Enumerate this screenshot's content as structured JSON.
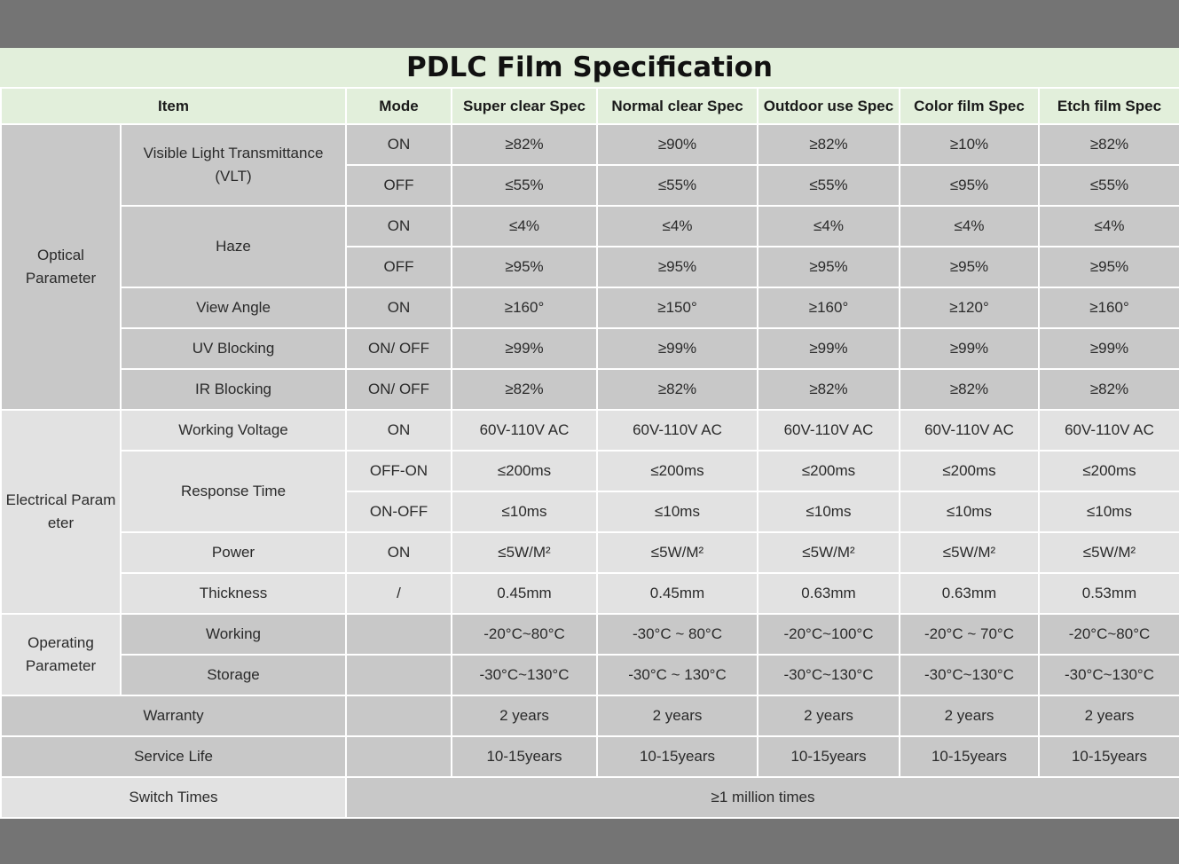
{
  "title": "PDLC Film Specification",
  "header": {
    "item": "Item",
    "mode": "Mode",
    "specs": [
      "Super clear Spec",
      "Normal clear Spec",
      "Outdoor use Spec",
      "Color film Spec",
      "Etch film Spec"
    ]
  },
  "optical": {
    "category": "Optical Parameter",
    "vlt": {
      "label": "Visible Light Transmittance (VLT)",
      "on": {
        "mode": "ON",
        "values": [
          "≥82%",
          "≥90%",
          "≥82%",
          "≥10%",
          "≥82%"
        ]
      },
      "off": {
        "mode": "OFF",
        "values": [
          "≤55%",
          "≤55%",
          "≤55%",
          "≤95%",
          "≤55%"
        ]
      }
    },
    "haze": {
      "label": "Haze",
      "on": {
        "mode": "ON",
        "values": [
          "≤4%",
          "≤4%",
          "≤4%",
          "≤4%",
          "≤4%"
        ]
      },
      "off": {
        "mode": "OFF",
        "values": [
          "≥95%",
          "≥95%",
          "≥95%",
          "≥95%",
          "≥95%"
        ]
      }
    },
    "view_angle": {
      "label": "View Angle",
      "mode": "ON",
      "values": [
        "≥160°",
        "≥150°",
        "≥160°",
        "≥120°",
        "≥160°"
      ]
    },
    "uv": {
      "label": "UV Blocking",
      "mode": "ON/ OFF",
      "values": [
        "≥99%",
        "≥99%",
        "≥99%",
        "≥99%",
        "≥99%"
      ]
    },
    "ir": {
      "label": "IR Blocking",
      "mode": "ON/ OFF",
      "values": [
        "≥82%",
        "≥82%",
        "≥82%",
        "≥82%",
        "≥82%"
      ]
    }
  },
  "electrical": {
    "category": "Electrical Param eter",
    "voltage": {
      "label": "Working Voltage",
      "mode": "ON",
      "values": [
        "60V-110V AC",
        "60V-110V AC",
        "60V-110V AC",
        "60V-110V AC",
        "60V-110V AC"
      ]
    },
    "response": {
      "label": "Response Time",
      "off_on": {
        "mode": "OFF-ON",
        "values": [
          "≤200ms",
          "≤200ms",
          "≤200ms",
          "≤200ms",
          "≤200ms"
        ]
      },
      "on_off": {
        "mode": "ON-OFF",
        "values": [
          "≤10ms",
          "≤10ms",
          "≤10ms",
          "≤10ms",
          "≤10ms"
        ]
      }
    },
    "power": {
      "label": "Power",
      "mode": "ON",
      "values": [
        "≤5W/M²",
        "≤5W/M²",
        "≤5W/M²",
        "≤5W/M²",
        "≤5W/M²"
      ]
    },
    "thickness": {
      "label": "Thickness",
      "mode": "/",
      "values": [
        "0.45mm",
        "0.45mm",
        "0.63mm",
        "0.63mm",
        "0.53mm"
      ]
    }
  },
  "operating": {
    "category": "Operating Parameter",
    "working": {
      "label": "Working",
      "values": [
        "-20°C~80°C",
        "-30°C ~ 80°C",
        "-20°C~100°C",
        "-20°C ~ 70°C",
        "-20°C~80°C"
      ]
    },
    "storage": {
      "label": "Storage",
      "values": [
        "-30°C~130°C",
        "-30°C ~ 130°C",
        "-30°C~130°C",
        "-30°C~130°C",
        "-30°C~130°C"
      ]
    }
  },
  "warranty": {
    "label": "Warranty",
    "values": [
      "2 years",
      "2 years",
      "2 years",
      "2 years",
      "2 years"
    ]
  },
  "service_life": {
    "label": "Service Life",
    "values": [
      "10-15years",
      "10-15years",
      "10-15years",
      "10-15years",
      "10-15years"
    ]
  },
  "switch_times": {
    "label": "Switch Times",
    "value": "≥1 million times"
  },
  "colors": {
    "header_bg": "#e2efdb",
    "row_dark": "#c8c8c8",
    "row_light": "#e2e2e2",
    "frame": "#747474"
  }
}
